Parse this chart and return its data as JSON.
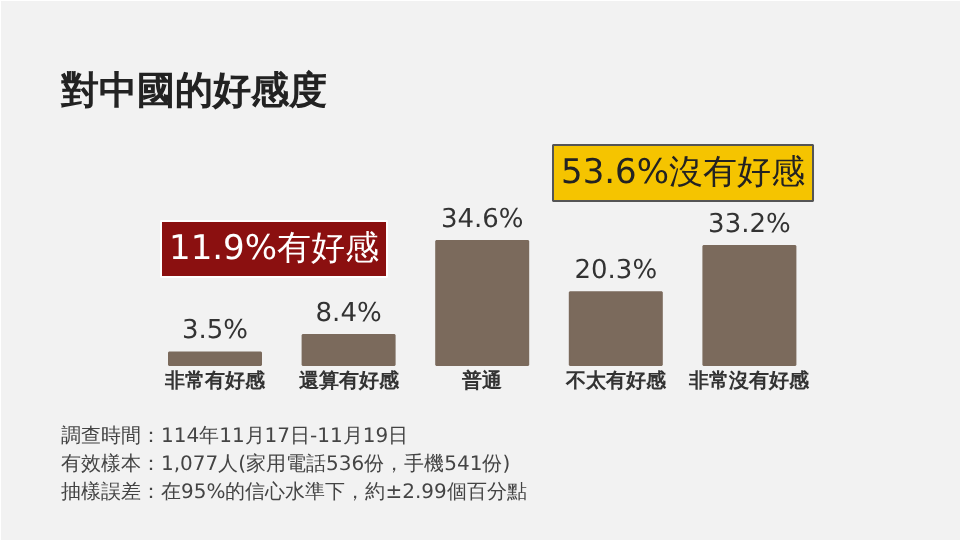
{
  "chart_data": {
    "type": "bar",
    "title": "對中國的好感度",
    "categories": [
      "非常有好感",
      "還算有好感",
      "普通",
      "不太有好感",
      "非常沒有好感"
    ],
    "values": [
      3.5,
      8.4,
      34.6,
      20.3,
      33.2
    ],
    "color": "#7b6a5c",
    "value_labels": [
      "3.5%",
      "8.4%",
      "34.6%",
      "20.3%",
      "33.2%"
    ],
    "annotations": [
      "11.9%有好感",
      "53.6%沒有好感",
      "調查時間：114年11月17日-11月19日",
      "有效樣本：1,077人(家用電話536份，手機541份)",
      "抽樣誤差：在95%的信心水準下，約±2.99個百分點"
    ]
  }
}
